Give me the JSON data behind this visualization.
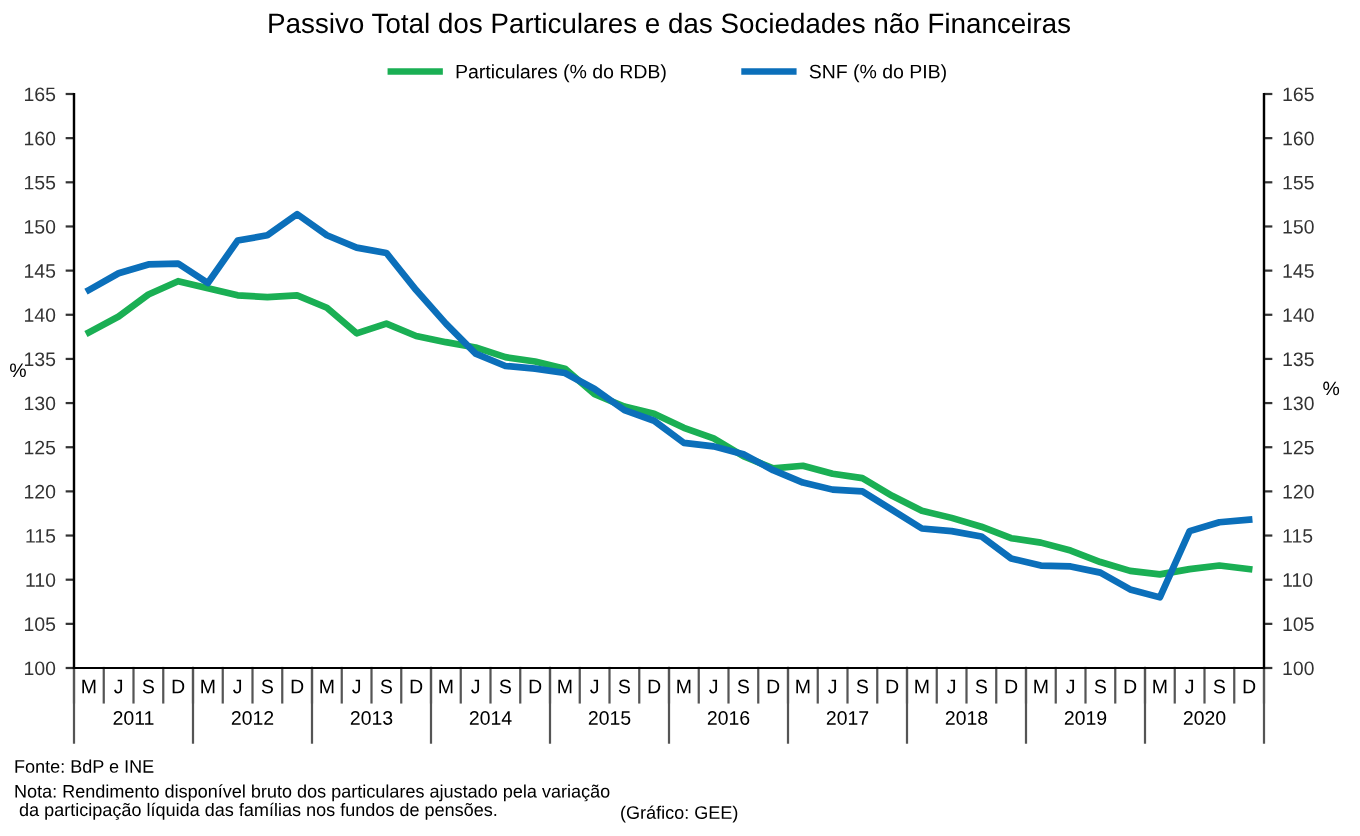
{
  "chart_data": {
    "type": "line",
    "title": "Passivo Total dos Particulares e das Sociedades não Financeiras",
    "categories": [
      "M",
      "J",
      "S",
      "D",
      "M",
      "J",
      "S",
      "D",
      "M",
      "J",
      "S",
      "D",
      "M",
      "J",
      "S",
      "D",
      "M",
      "J",
      "S",
      "D",
      "M",
      "J",
      "S",
      "D",
      "M",
      "J",
      "S",
      "D",
      "M",
      "J",
      "S",
      "D",
      "M",
      "J",
      "S",
      "D",
      "M",
      "J",
      "S",
      "D"
    ],
    "series": [
      {
        "name": "Particulares (% do RDB)",
        "color": "#1aaf54",
        "values": [
          138,
          139.8,
          142.3,
          143.8,
          143,
          142.2,
          142,
          142.2,
          140.8,
          137.9,
          139,
          137.6,
          136.9,
          136.3,
          135.2,
          134.7,
          133.9,
          131,
          129.6,
          128.8,
          127.2,
          126,
          124,
          122.6,
          122.9,
          122,
          121.5,
          119.5,
          117.8,
          117,
          116,
          114.7,
          114.2,
          113.3,
          112,
          111,
          110.6,
          111.2,
          111.6,
          111.2
        ]
      },
      {
        "name": "SNF (% do PIB)",
        "color": "#0b6fba",
        "values": [
          142.8,
          144.7,
          145.7,
          145.8,
          143.6,
          148.4,
          149,
          151.4,
          149,
          147.6,
          147,
          142.8,
          139,
          135.6,
          134.2,
          133.9,
          133.4,
          131.6,
          129.2,
          128,
          125.5,
          125.1,
          124.2,
          122.4,
          121,
          120.2,
          120,
          117.9,
          115.8,
          115.5,
          114.9,
          112.4,
          111.6,
          111.5,
          110.8,
          108.9,
          108,
          115.5,
          116.5,
          116.8
        ]
      }
    ],
    "ylim": [
      100,
      165
    ],
    "yticks": [
      100,
      105,
      110,
      115,
      120,
      125,
      130,
      135,
      140,
      145,
      150,
      155,
      160,
      165
    ],
    "y2lim": [
      100,
      165
    ],
    "y2ticks": [
      100,
      105,
      110,
      115,
      120,
      125,
      130,
      135,
      140,
      145,
      150,
      155,
      160,
      165
    ],
    "ylabel": "%",
    "y2label": "%",
    "legend": "top",
    "grid": false,
    "marker": "none",
    "line_style": "solid",
    "annotations": [
      "2011",
      "2012",
      "2013",
      "2014",
      "2015",
      "2016",
      "2017",
      "2018",
      "2019",
      "2020",
      "Fonte: BdP e INE",
      "Nota: Rendimento disponível bruto dos particulares ajustado pela variação\n da participação líquida das famílias nos fundos de pensões.",
      "(Gráfico: GEE)"
    ]
  }
}
